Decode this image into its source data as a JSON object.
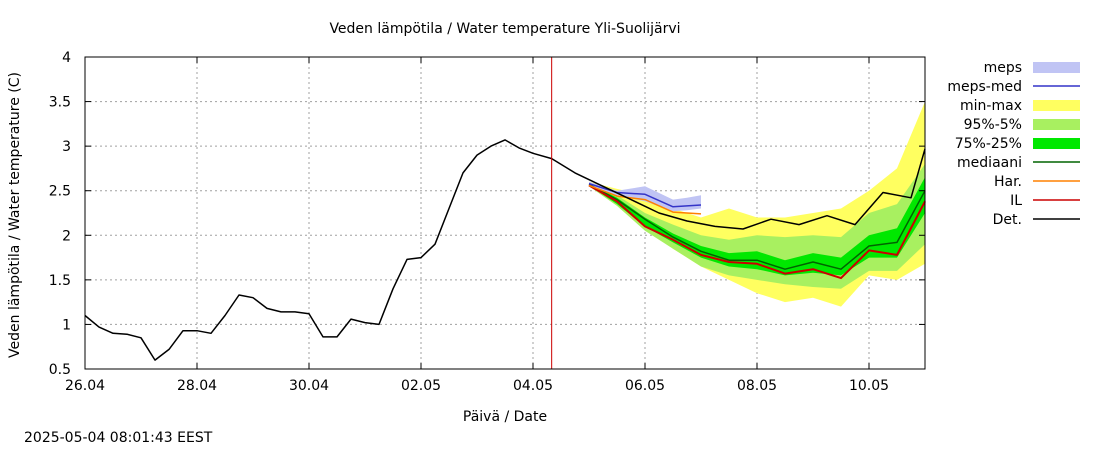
{
  "chart_data": {
    "type": "line",
    "title": "Veden lämpötila / Water temperature Yli-Suolijärvi",
    "xlabel": "Päivä / Date",
    "ylabel": "Veden lämpötila / Water temperature (C)",
    "x_range": [
      "2025-04-26",
      "2025-05-11"
    ],
    "ylim": [
      0.5,
      4
    ],
    "y_ticks": [
      "0.5",
      "1",
      "1.5",
      "2",
      "2.5",
      "3",
      "3.5",
      "4"
    ],
    "x_ticks": [
      {
        "label": "26.04",
        "date": "2025-04-26"
      },
      {
        "label": "28.04",
        "date": "2025-04-28"
      },
      {
        "label": "30.04",
        "date": "2025-04-30"
      },
      {
        "label": "02.05",
        "date": "2025-05-02"
      },
      {
        "label": "04.05",
        "date": "2025-05-04"
      },
      {
        "label": "06.05",
        "date": "2025-05-06"
      },
      {
        "label": "08.05",
        "date": "2025-05-08"
      },
      {
        "label": "10.05",
        "date": "2025-05-10"
      }
    ],
    "grid": true,
    "legend_position": "right",
    "now_marker": {
      "date": "2025-05-04 08:00",
      "color": "#cc0000"
    },
    "legend": [
      {
        "label": "meps",
        "kind": "band",
        "color": "#c0c4f4"
      },
      {
        "label": "meps-med",
        "kind": "line",
        "color": "#3434c8"
      },
      {
        "label": "min-max",
        "kind": "band",
        "color": "#ffff60"
      },
      {
        "label": "95%-5%",
        "kind": "band",
        "color": "#a8f060"
      },
      {
        "label": "75%-25%",
        "kind": "band",
        "color": "#00e800"
      },
      {
        "label": "mediaani",
        "kind": "line",
        "color": "#006400"
      },
      {
        "label": "Har.",
        "kind": "line",
        "color": "#ff8000"
      },
      {
        "label": "IL",
        "kind": "line",
        "color": "#cc0000"
      },
      {
        "label": "Det.",
        "kind": "line",
        "color": "#000000"
      }
    ],
    "series": {
      "observed": {
        "x": [
          "2025-04-26 00:00",
          "2025-04-26 06:00",
          "2025-04-26 12:00",
          "2025-04-26 18:00",
          "2025-04-27 00:00",
          "2025-04-27 06:00",
          "2025-04-27 12:00",
          "2025-04-27 18:00",
          "2025-04-28 00:00",
          "2025-04-28 06:00",
          "2025-04-28 12:00",
          "2025-04-28 18:00",
          "2025-04-29 00:00",
          "2025-04-29 06:00",
          "2025-04-29 12:00",
          "2025-04-29 18:00",
          "2025-04-30 00:00",
          "2025-04-30 06:00",
          "2025-04-30 12:00",
          "2025-04-30 18:00",
          "2025-05-01 00:00",
          "2025-05-01 06:00",
          "2025-05-01 12:00",
          "2025-05-01 18:00",
          "2025-05-02 00:00",
          "2025-05-02 06:00",
          "2025-05-02 12:00",
          "2025-05-02 18:00",
          "2025-05-03 00:00",
          "2025-05-03 06:00",
          "2025-05-03 12:00",
          "2025-05-03 18:00",
          "2025-05-04 00:00",
          "2025-05-04 08:00"
        ],
        "y": [
          1.1,
          0.97,
          0.9,
          0.89,
          0.85,
          0.6,
          0.72,
          0.93,
          0.93,
          0.9,
          1.1,
          1.33,
          1.3,
          1.18,
          1.14,
          1.14,
          1.12,
          0.86,
          0.86,
          1.06,
          1.02,
          1.0,
          1.4,
          1.73,
          1.75,
          1.9,
          2.3,
          2.7,
          2.9,
          3.0,
          3.07,
          2.98,
          2.92,
          2.86
        ]
      },
      "det": {
        "x": [
          "2025-05-04 08:00",
          "2025-05-04 18:00",
          "2025-05-05 06:00",
          "2025-05-05 18:00",
          "2025-05-06 06:00",
          "2025-05-06 18:00",
          "2025-05-07 06:00",
          "2025-05-07 18:00",
          "2025-05-08 06:00",
          "2025-05-08 18:00",
          "2025-05-09 06:00",
          "2025-05-09 18:00",
          "2025-05-10 06:00",
          "2025-05-10 18:00",
          "2025-05-11 00:00"
        ],
        "y": [
          2.86,
          2.7,
          2.55,
          2.4,
          2.25,
          2.16,
          2.1,
          2.07,
          2.18,
          2.12,
          2.22,
          2.12,
          2.48,
          2.42,
          2.97
        ]
      },
      "meps_med": {
        "x": [
          "2025-05-05 00:00",
          "2025-05-05 12:00",
          "2025-05-06 00:00",
          "2025-05-06 12:00",
          "2025-05-06 18:00",
          "2025-05-07 00:00"
        ],
        "y": [
          2.58,
          2.48,
          2.46,
          2.32,
          2.33,
          2.34
        ]
      },
      "meps_band": {
        "x": [
          "2025-05-05 00:00",
          "2025-05-05 12:00",
          "2025-05-06 00:00",
          "2025-05-06 12:00",
          "2025-05-06 18:00",
          "2025-05-07 00:00"
        ],
        "low": [
          2.56,
          2.45,
          2.38,
          2.27,
          2.28,
          2.3
        ],
        "high": [
          2.6,
          2.5,
          2.55,
          2.4,
          2.42,
          2.45
        ]
      },
      "har": {
        "x": [
          "2025-05-05 00:00",
          "2025-05-05 12:00",
          "2025-05-06 00:00",
          "2025-05-06 12:00",
          "2025-05-07 00:00"
        ],
        "y": [
          2.56,
          2.44,
          2.4,
          2.26,
          2.24
        ]
      },
      "ens_x": [
        "2025-05-05 00:00",
        "2025-05-05 12:00",
        "2025-05-06 00:00",
        "2025-05-06 12:00",
        "2025-05-07 00:00",
        "2025-05-07 12:00",
        "2025-05-08 00:00",
        "2025-05-08 12:00",
        "2025-05-09 00:00",
        "2025-05-09 12:00",
        "2025-05-10 00:00",
        "2025-05-10 12:00",
        "2025-05-11 00:00"
      ],
      "min_max": {
        "low": [
          2.55,
          2.35,
          2.1,
          1.85,
          1.65,
          1.5,
          1.35,
          1.25,
          1.3,
          1.2,
          1.55,
          1.5,
          1.68
        ],
        "high": [
          2.6,
          2.52,
          2.45,
          2.3,
          2.2,
          2.3,
          2.2,
          2.2,
          2.25,
          2.3,
          2.5,
          2.75,
          3.5
        ]
      },
      "p95_5": {
        "low": [
          2.55,
          2.33,
          2.05,
          1.85,
          1.65,
          1.55,
          1.5,
          1.45,
          1.42,
          1.4,
          1.6,
          1.6,
          1.9
        ],
        "high": [
          2.58,
          2.45,
          2.25,
          2.12,
          2.0,
          1.95,
          2.0,
          1.98,
          2.0,
          1.98,
          2.25,
          2.35,
          2.8
        ]
      },
      "p75_25": {
        "low": [
          2.56,
          2.35,
          2.1,
          1.92,
          1.75,
          1.65,
          1.62,
          1.55,
          1.58,
          1.55,
          1.75,
          1.75,
          2.25
        ]
      },
      "p75_25_high": [
        2.58,
        2.42,
        2.2,
        2.02,
        1.88,
        1.8,
        1.82,
        1.72,
        1.8,
        1.75,
        2.0,
        2.08,
        2.65
      ],
      "mediaani": {
        "y": [
          2.57,
          2.4,
          2.18,
          1.98,
          1.82,
          1.72,
          1.72,
          1.62,
          1.7,
          1.62,
          1.88,
          1.92,
          2.5
        ]
      },
      "il": {
        "y": [
          2.56,
          2.38,
          2.1,
          1.95,
          1.78,
          1.7,
          1.68,
          1.57,
          1.62,
          1.52,
          1.83,
          1.78,
          2.38
        ]
      }
    }
  },
  "footer": {
    "timestamp": "2025-05-04 08:01:43 EEST"
  }
}
